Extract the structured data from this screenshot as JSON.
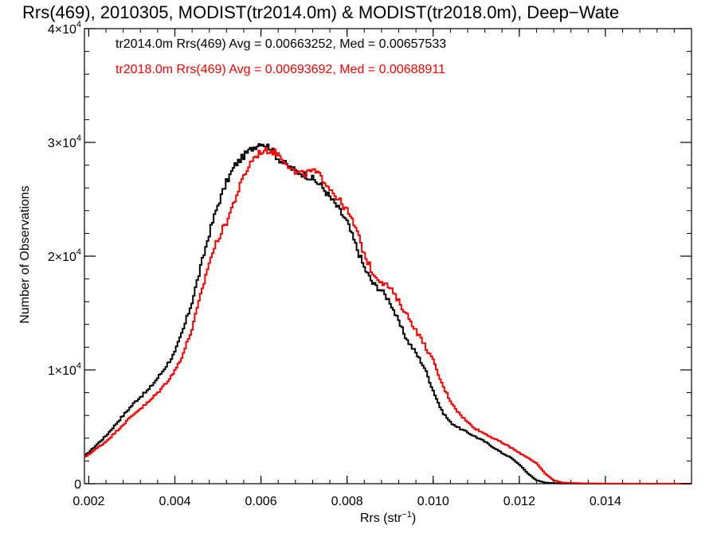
{
  "chart_data": {
    "type": "line",
    "title": "Rrs(469), 2010305, MODIST(tr2014.0m) & MODIST(tr2018.0m), Deep−Wate",
    "xlabel": "Rrs (str",
    "xlabel_sup": "−1",
    "xlabel_suffix": ")",
    "ylabel": "Number of Observations",
    "xlim": [
      0.0019,
      0.016
    ],
    "ylim": [
      0,
      40000
    ],
    "x_ticks": [
      0.002,
      0.004,
      0.006,
      0.008,
      0.01,
      0.012,
      0.014
    ],
    "x_tick_labels": [
      "0.002",
      "0.004",
      "0.006",
      "0.008",
      "0.010",
      "0.012",
      "0.014"
    ],
    "y_ticks": [
      0,
      10000,
      20000,
      30000,
      40000
    ],
    "y_tick_labels": [
      {
        "base": "0",
        "exp": ""
      },
      {
        "base": "1×10",
        "exp": "4"
      },
      {
        "base": "2×10",
        "exp": "4"
      },
      {
        "base": "3×10",
        "exp": "4"
      },
      {
        "base": "4×10",
        "exp": "4"
      }
    ],
    "grid": false,
    "series": [
      {
        "name": "tr2014.0m",
        "color": "#000000",
        "stats_label": "tr2014.0m Rrs(469) Avg = 0.00663252, Med = 0.00657533",
        "x": [
          0.0019,
          0.0024,
          0.0028,
          0.0031,
          0.0034,
          0.0037,
          0.004,
          0.0042,
          0.0044,
          0.0046,
          0.0048,
          0.005,
          0.0052,
          0.0054,
          0.0056,
          0.0058,
          0.006,
          0.0062,
          0.0064,
          0.0066,
          0.0068,
          0.007,
          0.0072,
          0.0074,
          0.0076,
          0.0078,
          0.008,
          0.0082,
          0.0084,
          0.0086,
          0.0088,
          0.009,
          0.0092,
          0.0094,
          0.0096,
          0.0098,
          0.01,
          0.0102,
          0.0104,
          0.0106,
          0.0108,
          0.011,
          0.0112,
          0.0114,
          0.0116,
          0.0118,
          0.012,
          0.0122,
          0.0124,
          0.0126,
          0.0128,
          0.013,
          0.0135,
          0.014,
          0.015,
          0.016
        ],
        "y": [
          2400,
          4200,
          6000,
          7300,
          8300,
          9800,
          11500,
          13600,
          16000,
          19000,
          22000,
          24500,
          26500,
          28000,
          28800,
          29500,
          30000,
          29600,
          28600,
          28000,
          27500,
          27200,
          26800,
          26200,
          25200,
          24200,
          23000,
          21000,
          19000,
          17600,
          17000,
          16000,
          14200,
          12600,
          11500,
          10200,
          8200,
          6400,
          5400,
          4900,
          4500,
          4100,
          3700,
          3200,
          2700,
          2300,
          1700,
          900,
          300,
          100,
          50,
          20,
          10,
          0,
          0,
          0
        ]
      },
      {
        "name": "tr2018.0m",
        "color": "#ff0000",
        "stats_label": "tr2018.0m Rrs(469) Avg = 0.00693692, Med = 0.00688911",
        "x": [
          0.0019,
          0.0024,
          0.0028,
          0.0031,
          0.0034,
          0.0037,
          0.004,
          0.0042,
          0.0044,
          0.0046,
          0.0048,
          0.005,
          0.0052,
          0.0054,
          0.0056,
          0.0058,
          0.006,
          0.0062,
          0.0064,
          0.0066,
          0.0068,
          0.007,
          0.0072,
          0.0074,
          0.0076,
          0.0078,
          0.008,
          0.0082,
          0.0084,
          0.0086,
          0.0088,
          0.009,
          0.0092,
          0.0094,
          0.0096,
          0.0098,
          0.01,
          0.0102,
          0.0104,
          0.0106,
          0.0108,
          0.011,
          0.0112,
          0.0114,
          0.0116,
          0.0118,
          0.012,
          0.0122,
          0.0124,
          0.0126,
          0.0128,
          0.013,
          0.0135,
          0.014,
          0.015,
          0.016
        ],
        "y": [
          2300,
          3700,
          5200,
          6300,
          7200,
          8400,
          9900,
          11500,
          13600,
          16500,
          19500,
          21500,
          23000,
          25000,
          27000,
          28500,
          29200,
          29300,
          29000,
          28200,
          27300,
          27200,
          27500,
          27000,
          26000,
          25000,
          24000,
          22500,
          20200,
          18500,
          17800,
          17200,
          16000,
          14800,
          13500,
          12200,
          10800,
          8800,
          7300,
          6200,
          5400,
          4800,
          4400,
          4000,
          3600,
          3200,
          2700,
          2300,
          1800,
          900,
          300,
          100,
          30,
          10,
          0,
          0
        ]
      }
    ]
  }
}
